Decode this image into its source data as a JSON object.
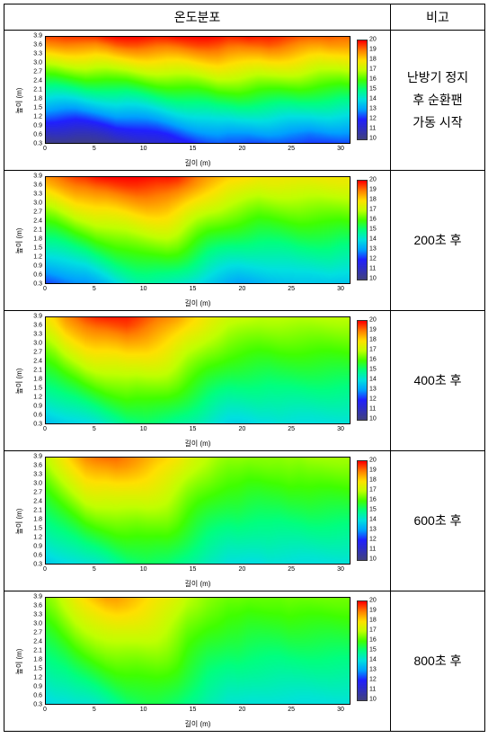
{
  "header": {
    "col1": "온도분포",
    "col2": "비고"
  },
  "axes": {
    "x_label": "길이 (m)",
    "y_label": "높이 (m)",
    "x_ticks": [
      0,
      5,
      10,
      15,
      20,
      25,
      30
    ],
    "x_min": 0,
    "x_max": 31,
    "y_ticks": [
      0.3,
      0.6,
      0.9,
      1.2,
      1.5,
      1.8,
      2.1,
      2.4,
      2.7,
      3.0,
      3.3,
      3.6,
      3.9
    ],
    "y_min": 0.3,
    "y_max": 3.9
  },
  "colorbar": {
    "ticks": [
      10,
      11,
      12,
      13,
      14,
      15,
      16,
      17,
      18,
      19,
      20
    ],
    "min": 10,
    "max": 20,
    "stops": [
      {
        "v": 10,
        "c": "#404080"
      },
      {
        "v": 11,
        "c": "#3030c0"
      },
      {
        "v": 12,
        "c": "#2020ff"
      },
      {
        "v": 13,
        "c": "#00a0ff"
      },
      {
        "v": 14,
        "c": "#00e0e0"
      },
      {
        "v": 15,
        "c": "#00ff80"
      },
      {
        "v": 16,
        "c": "#40ff00"
      },
      {
        "v": 17,
        "c": "#c0ff00"
      },
      {
        "v": 18,
        "c": "#ffe000"
      },
      {
        "v": 19,
        "c": "#ff8000"
      },
      {
        "v": 20,
        "c": "#ff0000"
      }
    ]
  },
  "rows": [
    {
      "note": "난방기 정지\n후 순환팬\n가동 시작",
      "field": {
        "nx": 31,
        "ny": 13,
        "top_row": [
          19.5,
          19.5,
          19.6,
          19.7,
          19.8,
          19.8,
          19.9,
          20.0,
          20.0,
          20.0,
          20.0,
          20.0,
          20.0,
          20.0,
          20.0,
          20.0,
          20.0,
          20.0,
          19.9,
          19.9,
          19.9,
          19.8,
          19.8,
          19.7,
          19.6,
          19.5,
          19.4,
          19.3,
          19.3,
          19.2,
          19.2
        ],
        "bottom_row": [
          10.0,
          10.0,
          10.0,
          10.0,
          10.1,
          10.2,
          10.3,
          10.5,
          10.6,
          10.8,
          11.0,
          11.2,
          11.4,
          11.6,
          11.8,
          12.0,
          12.2,
          12.4,
          12.4,
          12.4,
          12.3,
          12.3,
          12.3,
          12.3,
          12.3,
          12.3,
          12.2,
          12.2,
          12.2,
          12.2,
          12.2
        ],
        "mid_warp": 0.0
      }
    },
    {
      "note": "200초 후",
      "field": {
        "nx": 31,
        "ny": 13,
        "top_row": [
          18.8,
          19.0,
          19.3,
          19.6,
          19.8,
          20.0,
          20.0,
          20.0,
          20.0,
          20.0,
          20.0,
          20.0,
          20.0,
          19.8,
          19.4,
          19.0,
          18.7,
          18.5,
          18.3,
          18.2,
          18.0,
          17.8,
          17.8,
          17.8,
          17.8,
          17.8,
          17.8,
          17.8,
          17.8,
          17.8,
          17.8
        ],
        "bottom_row": [
          12.2,
          12.3,
          12.5,
          12.7,
          12.8,
          13.0,
          13.2,
          13.4,
          13.5,
          13.6,
          13.6,
          13.5,
          13.4,
          13.3,
          13.2,
          13.1,
          13.0,
          13.0,
          13.0,
          13.0,
          13.1,
          13.2,
          13.3,
          13.4,
          13.5,
          13.6,
          13.6,
          13.6,
          13.6,
          13.5,
          13.5
        ],
        "mid_warp": 0.18
      }
    },
    {
      "note": "400초 후",
      "field": {
        "nx": 31,
        "ny": 13,
        "top_row": [
          17.8,
          18.2,
          18.8,
          19.2,
          19.6,
          19.8,
          19.8,
          19.8,
          19.8,
          19.6,
          19.4,
          19.2,
          19.0,
          18.7,
          18.3,
          18.0,
          17.7,
          17.5,
          17.3,
          17.2,
          17.1,
          17.0,
          17.0,
          17.0,
          17.0,
          17.0,
          17.0,
          17.0,
          17.0,
          17.0,
          17.0
        ],
        "bottom_row": [
          13.4,
          13.5,
          13.6,
          13.7,
          13.8,
          13.9,
          14.0,
          14.0,
          14.0,
          13.9,
          13.9,
          13.8,
          13.7,
          13.6,
          13.6,
          13.6,
          13.6,
          13.6,
          13.6,
          13.7,
          13.8,
          13.9,
          13.9,
          14.0,
          14.0,
          14.0,
          14.0,
          14.0,
          14.0,
          14.0,
          14.0
        ],
        "mid_warp": 0.25
      }
    },
    {
      "note": "600초 후",
      "field": {
        "nx": 31,
        "ny": 13,
        "top_row": [
          17.0,
          17.5,
          18.0,
          18.5,
          19.0,
          19.2,
          19.2,
          19.2,
          19.0,
          18.8,
          18.6,
          18.4,
          18.2,
          17.9,
          17.5,
          17.2,
          17.0,
          16.8,
          16.7,
          16.7,
          16.6,
          16.6,
          16.6,
          16.6,
          16.7,
          16.7,
          16.8,
          16.8,
          16.8,
          16.8,
          16.8
        ],
        "bottom_row": [
          13.6,
          13.7,
          13.8,
          13.9,
          14.0,
          14.0,
          14.0,
          14.0,
          14.0,
          13.9,
          13.9,
          13.8,
          13.8,
          13.7,
          13.7,
          13.7,
          13.7,
          13.8,
          13.8,
          13.9,
          13.9,
          13.9,
          14.0,
          14.0,
          14.0,
          14.0,
          14.0,
          14.0,
          14.0,
          14.0,
          14.0
        ],
        "mid_warp": 0.32
      }
    },
    {
      "note": "800초 후",
      "field": {
        "nx": 31,
        "ny": 13,
        "top_row": [
          16.5,
          16.8,
          17.3,
          17.8,
          18.2,
          18.5,
          18.7,
          18.7,
          18.5,
          18.3,
          18.1,
          17.9,
          17.7,
          17.4,
          17.0,
          16.8,
          16.6,
          16.5,
          16.4,
          16.4,
          16.3,
          16.3,
          16.3,
          16.3,
          16.4,
          16.4,
          16.4,
          16.4,
          16.4,
          16.4,
          16.4
        ],
        "bottom_row": [
          13.8,
          13.9,
          13.9,
          14.0,
          14.0,
          14.0,
          14.0,
          14.0,
          14.0,
          13.9,
          13.9,
          13.9,
          13.8,
          13.8,
          13.8,
          13.8,
          13.8,
          13.9,
          13.9,
          14.0,
          14.0,
          14.0,
          14.0,
          14.0,
          14.0,
          14.0,
          14.0,
          14.0,
          14.0,
          14.0,
          14.0
        ],
        "mid_warp": 0.4
      }
    }
  ]
}
